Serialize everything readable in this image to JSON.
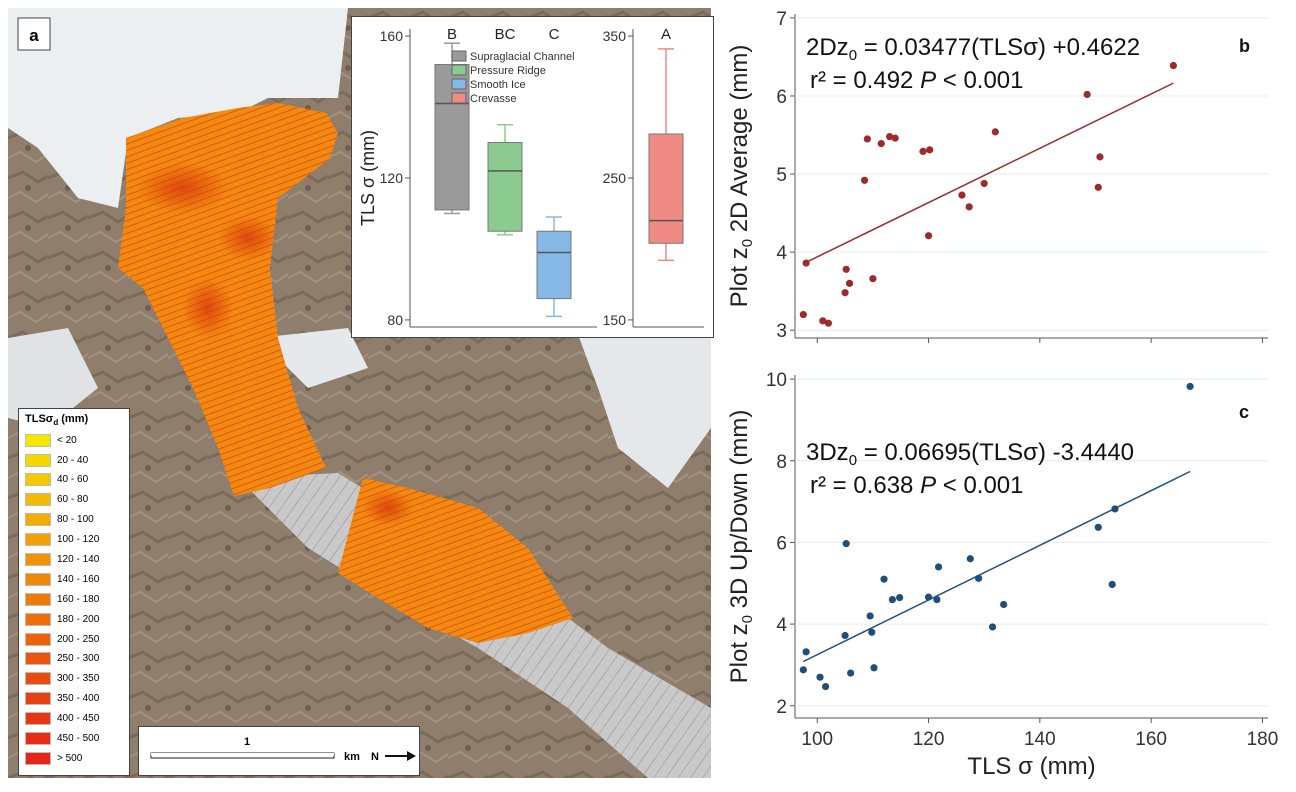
{
  "panel_a": {
    "letter": "a",
    "legend": {
      "title": "TLSσ",
      "title_sub": "d",
      "title_unit": " (mm)",
      "items": [
        {
          "label": "< 20",
          "color": "#f6e600"
        },
        {
          "label": "20 - 40",
          "color": "#f5d800"
        },
        {
          "label": "40 - 60",
          "color": "#f4c900"
        },
        {
          "label": "60 - 80",
          "color": "#f3bb03"
        },
        {
          "label": "80 - 100",
          "color": "#f2ad05"
        },
        {
          "label": "100 - 120",
          "color": "#f1a006"
        },
        {
          "label": "120 - 140",
          "color": "#f09306"
        },
        {
          "label": "140 - 160",
          "color": "#ef8707"
        },
        {
          "label": "160 - 180",
          "color": "#ee7b08"
        },
        {
          "label": "180 - 200",
          "color": "#ed6f0a"
        },
        {
          "label": "200 - 250",
          "color": "#ec630c"
        },
        {
          "label": "250 - 300",
          "color": "#eb570e"
        },
        {
          "label": "300 - 350",
          "color": "#ea4b10"
        },
        {
          "label": "350 - 400",
          "color": "#e94012"
        },
        {
          "label": "400 - 450",
          "color": "#e83615"
        },
        {
          "label": "450 - 500",
          "color": "#e72d18"
        },
        {
          "label": "> 500",
          "color": "#e6241b"
        }
      ]
    },
    "scale_bar": {
      "label": "1",
      "unit": "km",
      "north": "N"
    }
  },
  "chart_data": [
    {
      "type": "box",
      "id": "inset",
      "ylabel": "TLS σ (mm)",
      "left_axis": {
        "ylim": [
          78,
          162
        ],
        "ticks": [
          80,
          120,
          160
        ]
      },
      "right_axis": {
        "ylim": [
          145,
          355
        ],
        "ticks": [
          150,
          250,
          350
        ]
      },
      "legend": [
        "Supraglacial Channel",
        "Pressure Ridge",
        "Smooth Ice",
        "Crevasse"
      ],
      "boxes": [
        {
          "name": "Supraglacial Channel",
          "letter": "B",
          "axis": "left",
          "min": 110,
          "q1": 111,
          "median": 141,
          "q3": 152,
          "max": 158,
          "color": "#9a9a9a"
        },
        {
          "name": "Pressure Ridge",
          "letter": "BC",
          "axis": "left",
          "min": 104,
          "q1": 105,
          "median": 122,
          "q3": 130,
          "max": 135,
          "color": "#8ccb8f"
        },
        {
          "name": "Smooth Ice",
          "letter": "C",
          "axis": "left",
          "min": 81,
          "q1": 86,
          "median": 99,
          "q3": 105,
          "max": 109,
          "color": "#86b8e6"
        },
        {
          "name": "Crevasse",
          "letter": "A",
          "axis": "right",
          "min": 192,
          "q1": 204,
          "median": 220,
          "q3": 281,
          "max": 341,
          "color": "#ef8a85"
        }
      ]
    },
    {
      "type": "scatter",
      "id": "b",
      "letter": "b",
      "xlim": [
        96,
        181
      ],
      "ylim": [
        2.9,
        7.05
      ],
      "yticks": [
        3,
        4,
        5,
        6,
        7
      ],
      "ylabel": "Plot z0 2D Average (mm)",
      "ylabel_parts": {
        "pre": "Plot z",
        "sub": "0",
        "post": " 2D Average (mm)"
      },
      "equation": {
        "pre": "2Dz",
        "sub": "0",
        "post": " = 0.03477(TLSσ) +0.4622"
      },
      "stats": {
        "r2": "r² = 0.492",
        "p_label": "P",
        "p_value": " < 0.001"
      },
      "fit": {
        "slope": 0.03477,
        "intercept": 0.4622,
        "x0": 97.5,
        "x1": 164
      },
      "color": "#9b2c2c",
      "points": [
        [
          97.5,
          3.2
        ],
        [
          98,
          3.86
        ],
        [
          101,
          3.12
        ],
        [
          102,
          3.09
        ],
        [
          105,
          3.48
        ],
        [
          105.2,
          3.78
        ],
        [
          105.8,
          3.6
        ],
        [
          108.5,
          4.92
        ],
        [
          109,
          5.45
        ],
        [
          110,
          3.66
        ],
        [
          111.5,
          5.39
        ],
        [
          113,
          5.48
        ],
        [
          114,
          5.46
        ],
        [
          119,
          5.29
        ],
        [
          120,
          4.21
        ],
        [
          120.2,
          5.31
        ],
        [
          126,
          4.73
        ],
        [
          127.3,
          4.58
        ],
        [
          130,
          4.88
        ],
        [
          132,
          5.54
        ],
        [
          148.5,
          6.02
        ],
        [
          150.5,
          4.83
        ],
        [
          150.8,
          5.22
        ],
        [
          164,
          6.39
        ]
      ]
    },
    {
      "type": "scatter",
      "id": "c",
      "letter": "c",
      "xlim": [
        96,
        181
      ],
      "xticks": [
        100,
        120,
        140,
        160,
        180
      ],
      "xlabel": "TLS σ (mm)",
      "ylim": [
        1.7,
        10.1
      ],
      "yticks": [
        2,
        4,
        6,
        8,
        10
      ],
      "ylabel": "Plot z0 3D Up/Down (mm)",
      "ylabel_parts": {
        "pre": "Plot z",
        "sub": "0",
        "post": " 3D Up/Down (mm)"
      },
      "equation": {
        "pre": "3Dz",
        "sub": "0",
        "post": " = 0.06695(TLSσ) -3.4440"
      },
      "stats": {
        "r2": "r² = 0.638",
        "p_label": "P",
        "p_value": " < 0.001"
      },
      "fit": {
        "slope": 0.06695,
        "intercept": -3.444,
        "x0": 97.5,
        "x1": 167
      },
      "color": "#1f4e79",
      "points": [
        [
          97.5,
          2.88
        ],
        [
          98,
          3.32
        ],
        [
          100.5,
          2.7
        ],
        [
          101.5,
          2.47
        ],
        [
          105,
          3.72
        ],
        [
          105.2,
          5.97
        ],
        [
          106,
          2.8
        ],
        [
          109.5,
          4.2
        ],
        [
          109.8,
          3.8
        ],
        [
          110.2,
          2.93
        ],
        [
          112,
          5.1
        ],
        [
          113.5,
          4.6
        ],
        [
          114.8,
          4.65
        ],
        [
          120,
          4.66
        ],
        [
          121.5,
          4.6
        ],
        [
          121.8,
          5.4
        ],
        [
          127.5,
          5.6
        ],
        [
          129,
          5.12
        ],
        [
          131.5,
          3.93
        ],
        [
          133.5,
          4.48
        ],
        [
          150.5,
          6.37
        ],
        [
          153,
          4.97
        ],
        [
          153.5,
          6.82
        ],
        [
          167,
          9.82
        ]
      ]
    }
  ]
}
